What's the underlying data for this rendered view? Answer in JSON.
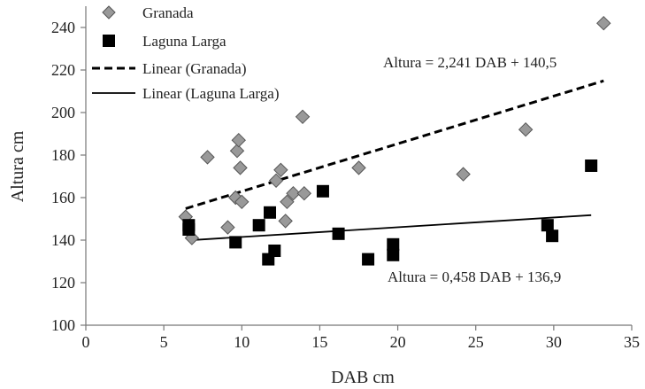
{
  "chart_data": {
    "type": "scatter",
    "title": "",
    "xlabel": "DAB cm",
    "ylabel": "Altura cm",
    "xlim": [
      0,
      35
    ],
    "ylim": [
      100,
      250
    ],
    "xticks": [
      "0",
      "5",
      "10",
      "15",
      "20",
      "25",
      "30",
      "35"
    ],
    "yticks": [
      "100",
      "120",
      "140",
      "160",
      "180",
      "200",
      "220",
      "240"
    ],
    "grid": false,
    "legend_position": "top-left",
    "series": [
      {
        "name": "Granada",
        "marker": "diamond",
        "color": "#999999",
        "points": [
          [
            6.4,
            151
          ],
          [
            6.8,
            141
          ],
          [
            7.8,
            179
          ],
          [
            9.1,
            146
          ],
          [
            9.6,
            160
          ],
          [
            9.7,
            182
          ],
          [
            9.8,
            187
          ],
          [
            9.9,
            174
          ],
          [
            10.0,
            158
          ],
          [
            12.2,
            168
          ],
          [
            12.5,
            173
          ],
          [
            12.8,
            149
          ],
          [
            12.9,
            158
          ],
          [
            13.3,
            162
          ],
          [
            13.9,
            198
          ],
          [
            14.0,
            162
          ],
          [
            17.5,
            174
          ],
          [
            24.2,
            171
          ],
          [
            28.2,
            192
          ],
          [
            33.2,
            242
          ]
        ]
      },
      {
        "name": "Laguna Larga",
        "marker": "square",
        "color": "#000000",
        "points": [
          [
            6.6,
            147
          ],
          [
            6.6,
            145
          ],
          [
            9.6,
            139
          ],
          [
            11.1,
            147
          ],
          [
            11.7,
            131
          ],
          [
            11.8,
            153
          ],
          [
            12.1,
            135
          ],
          [
            15.2,
            163
          ],
          [
            16.2,
            143
          ],
          [
            18.1,
            131
          ],
          [
            19.7,
            138
          ],
          [
            19.7,
            133
          ],
          [
            29.6,
            147
          ],
          [
            29.9,
            142
          ],
          [
            32.4,
            175
          ]
        ]
      },
      {
        "name": "Linear (Granada)",
        "type": "trendline",
        "dash": "dashed",
        "slope": 2.241,
        "intercept": 140.5,
        "x_range": [
          6.4,
          33.2
        ]
      },
      {
        "name": "Linear (Laguna Larga)",
        "type": "trendline",
        "dash": "solid",
        "slope": 0.458,
        "intercept": 136.9,
        "x_range": [
          6.6,
          32.4
        ]
      }
    ],
    "annotations": [
      "Altura = 2,241 DAB + 140,5",
      "Altura = 0,458 DAB  + 136,9"
    ]
  }
}
